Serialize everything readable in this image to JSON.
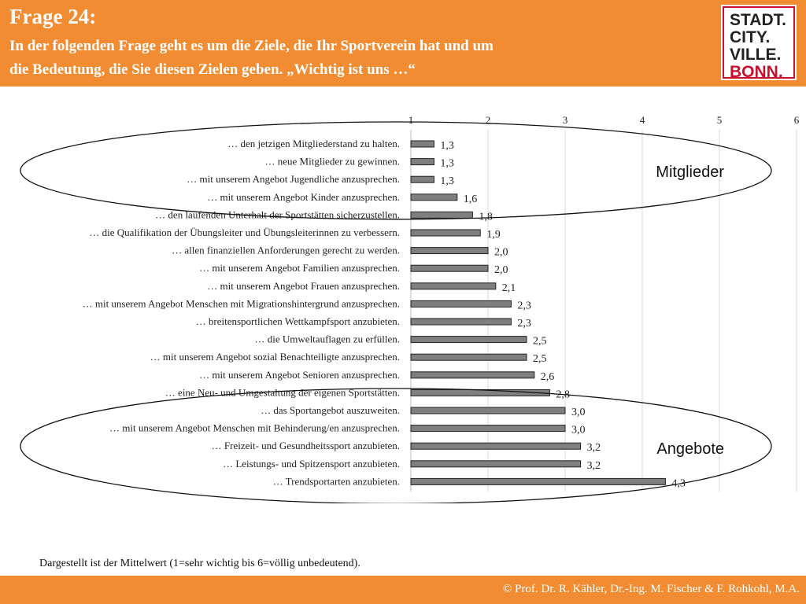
{
  "header": {
    "title": "Frage 24:",
    "question_line1": "In der folgenden Frage geht es um die Ziele, die Ihr Sportverein hat und um",
    "question_line2": "die Bedeutung, die Sie diesen Zielen geben. „Wichtig ist uns …“"
  },
  "logo": {
    "line1": "STADT.",
    "line2": "CITY.",
    "line3": "VILLE.",
    "line4": "BONN."
  },
  "colors": {
    "accent": "#F28C33",
    "bar": "#7f7f7f",
    "logo_red": "#C8102E"
  },
  "chart_data": {
    "type": "bar",
    "orientation": "horizontal",
    "xlim": [
      1,
      6
    ],
    "x_ticks": [
      "1",
      "2",
      "3",
      "4",
      "5",
      "6"
    ],
    "grid": true,
    "categories": [
      "… den jetzigen Mitgliederstand zu halten.",
      "… neue Mitglieder zu gewinnen.",
      "… mit unserem Angebot Jugendliche anzusprechen.",
      "… mit unserem Angebot Kinder anzusprechen.",
      "… den laufenden Unterhalt der Sportstätten sicherzustellen.",
      "… die Qualifikation der Übungsleiter und Übungsleiterinnen zu verbessern.",
      "… allen finanziellen Anforderungen gerecht zu werden.",
      "… mit unserem Angebot Familien anzusprechen.",
      "… mit unserem Angebot Frauen anzusprechen.",
      "… mit unserem Angebot Menschen mit Migrationshintergrund anzusprechen.",
      "… breitensportlichen Wettkampfsport anzubieten.",
      "… die Umweltauflagen zu erfüllen.",
      "… mit unserem Angebot sozial Benachteiligte anzusprechen.",
      "… mit unserem Angebot Senioren anzusprechen.",
      "… eine Neu- und Umgestaltung der eigenen Sportstätten.",
      "… das Sportangebot auszuweiten.",
      "… mit unserem Angebot Menschen mit Behinderung/en anzusprechen.",
      "… Freizeit- und Gesundheitssport anzubieten.",
      "… Leistungs- und Spitzensport anzubieten.",
      "… Trendsportarten anzubieten."
    ],
    "values": [
      1.3,
      1.3,
      1.3,
      1.6,
      1.8,
      1.9,
      2.0,
      2.0,
      2.1,
      2.3,
      2.3,
      2.5,
      2.5,
      2.6,
      2.8,
      3.0,
      3.0,
      3.2,
      3.2,
      4.3
    ],
    "value_labels": [
      "1,3",
      "1,3",
      "1,3",
      "1,6",
      "1,8",
      "1,9",
      "2,0",
      "2,0",
      "2,1",
      "2,3",
      "2,3",
      "2,5",
      "2,5",
      "2,6",
      "2,8",
      "3,0",
      "3,0",
      "3,2",
      "3,2",
      "4,3"
    ],
    "annotations": [
      {
        "text": "Mitglieder",
        "rows": [
          0,
          3
        ]
      },
      {
        "text": "Angebote",
        "rows": [
          15,
          19
        ]
      }
    ]
  },
  "note": "Dargestellt ist der Mittelwert (1=sehr wichtig bis 6=völlig unbedeutend).",
  "footer": {
    "credit": "© Prof. Dr. R. Kähler, Dr.-Ing. M. Fischer & F. Rohkohl, M.A."
  }
}
